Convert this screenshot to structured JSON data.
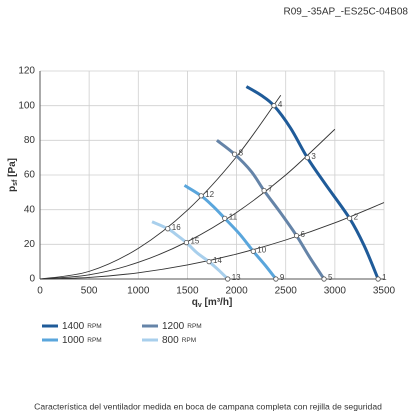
{
  "chart_data": {
    "type": "line",
    "code": "R09_-35AP_-ES25C-04B08",
    "caption": "Característica del ventilador medida en boca de campana completa con rejilla de seguridad",
    "x_label": {
      "symbol": "q",
      "subscript": "v",
      "unit": "[m³/h]"
    },
    "y_label": {
      "symbol": "p",
      "subscript": "sf",
      "unit": "[Pa]"
    },
    "xlim": [
      0,
      3500
    ],
    "xticks": [
      0,
      500,
      1000,
      1500,
      2000,
      2500,
      3000,
      3500
    ],
    "ylim": [
      0,
      120
    ],
    "yticks": [
      0,
      20,
      40,
      60,
      80,
      100,
      120
    ],
    "grid": true,
    "series": [
      {
        "name": "1400",
        "unit": "RPM",
        "color": "#1f5b99",
        "width": 3,
        "x": [
          2100,
          2250,
          2380,
          2550,
          2720,
          2900,
          3150,
          3300,
          3440
        ],
        "values": [
          111,
          106,
          100,
          87,
          70,
          55,
          35,
          19,
          0
        ],
        "points": {
          "labels": [
            "4",
            "3",
            "2",
            "1"
          ],
          "x": [
            2380,
            2720,
            3150,
            3440
          ],
          "values": [
            100,
            70,
            35,
            0
          ]
        }
      },
      {
        "name": "1200",
        "unit": "RPM",
        "color": "#6584a8",
        "width": 3,
        "x": [
          1800,
          1980,
          2150,
          2280,
          2450,
          2610,
          2750,
          2890
        ],
        "values": [
          80,
          72,
          62,
          51,
          38,
          25,
          12,
          0
        ],
        "points": {
          "labels": [
            "8",
            "7",
            "6",
            "5"
          ],
          "x": [
            1980,
            2280,
            2610,
            2890
          ],
          "values": [
            72,
            51,
            25,
            0
          ]
        }
      },
      {
        "name": "1000",
        "unit": "RPM",
        "color": "#5aa6dc",
        "width": 3,
        "x": [
          1470,
          1640,
          1760,
          1880,
          2030,
          2170,
          2290,
          2400
        ],
        "values": [
          54,
          48,
          42,
          35,
          26,
          16,
          8,
          0
        ],
        "points": {
          "labels": [
            "12",
            "11",
            "10",
            "9"
          ],
          "x": [
            1640,
            1880,
            2170,
            2400
          ],
          "values": [
            48,
            35,
            16,
            0
          ]
        }
      },
      {
        "name": "800",
        "unit": "RPM",
        "color": "#a8cfec",
        "width": 3,
        "x": [
          1140,
          1300,
          1400,
          1490,
          1600,
          1720,
          1820,
          1910
        ],
        "values": [
          33,
          29,
          25,
          21,
          15,
          10,
          5,
          0
        ],
        "points": {
          "labels": [
            "16",
            "15",
            "14",
            "13"
          ],
          "x": [
            1300,
            1490,
            1720,
            1910
          ],
          "values": [
            29,
            21,
            10,
            0
          ]
        }
      }
    ],
    "system_curves": {
      "color": "#333333",
      "curves": [
        {
          "x": [
            0,
            500,
            1000,
            1500,
            2000,
            2450
          ],
          "values": [
            0,
            4.4,
            17.7,
            39.7,
            70.6,
            106
          ]
        },
        {
          "x": [
            0,
            500,
            1000,
            1500,
            2000,
            2500,
            3000
          ],
          "values": [
            0,
            2.4,
            9.6,
            21.6,
            38.4,
            60,
            86.4
          ]
        },
        {
          "x": [
            0,
            500,
            1000,
            1500,
            2000,
            2500,
            3000,
            3500
          ],
          "values": [
            0,
            0.9,
            3.6,
            8.1,
            14.4,
            22.5,
            32.4,
            44.1
          ]
        }
      ]
    }
  }
}
